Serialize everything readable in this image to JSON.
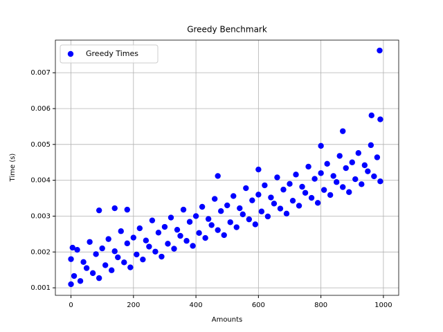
{
  "chart_data": {
    "type": "scatter",
    "title": "Greedy Benchmark",
    "x_label": "Amounts",
    "y_label": "Time (s)",
    "series": [
      {
        "name": "Greedy Times",
        "color": "#0000ff",
        "x": [
          0,
          10,
          20,
          30,
          40,
          50,
          60,
          70,
          80,
          90,
          100,
          110,
          120,
          130,
          140,
          150,
          160,
          170,
          180,
          190,
          200,
          210,
          220,
          230,
          240,
          250,
          260,
          270,
          280,
          290,
          300,
          310,
          320,
          330,
          340,
          350,
          360,
          370,
          380,
          390,
          400,
          410,
          420,
          430,
          440,
          450,
          460,
          470,
          480,
          490,
          500,
          510,
          520,
          530,
          540,
          550,
          560,
          570,
          580,
          590,
          600,
          610,
          620,
          630,
          640,
          650,
          660,
          670,
          680,
          690,
          700,
          710,
          720,
          730,
          740,
          750,
          760,
          770,
          780,
          790,
          800,
          810,
          820,
          830,
          840,
          850,
          860,
          870,
          880,
          890,
          900,
          910,
          920,
          930,
          940,
          950,
          960,
          970,
          980,
          990,
          988,
          962,
          870,
          990,
          800,
          470,
          140,
          90,
          0,
          5,
          600,
          180
        ],
        "values": [
          0.0018,
          0.00133,
          0.00206,
          0.00119,
          0.00172,
          0.00155,
          0.00228,
          0.00141,
          0.00194,
          0.00127,
          0.0021,
          0.00163,
          0.00236,
          0.00149,
          0.00202,
          0.00185,
          0.00258,
          0.00171,
          0.00224,
          0.00157,
          0.0024,
          0.00193,
          0.00266,
          0.00179,
          0.00232,
          0.00215,
          0.00288,
          0.00201,
          0.00254,
          0.00187,
          0.0027,
          0.00223,
          0.00296,
          0.00209,
          0.00262,
          0.00245,
          0.00318,
          0.00231,
          0.00284,
          0.00217,
          0.003,
          0.00253,
          0.00326,
          0.00239,
          0.00292,
          0.00275,
          0.00348,
          0.00261,
          0.00314,
          0.00247,
          0.0033,
          0.00283,
          0.00356,
          0.00269,
          0.00322,
          0.00305,
          0.00378,
          0.00291,
          0.00344,
          0.00277,
          0.0036,
          0.00313,
          0.00386,
          0.00299,
          0.00352,
          0.00335,
          0.00408,
          0.00321,
          0.00374,
          0.00307,
          0.0039,
          0.00343,
          0.00416,
          0.00329,
          0.00382,
          0.00365,
          0.00438,
          0.00351,
          0.00404,
          0.00337,
          0.0042,
          0.00373,
          0.00446,
          0.00359,
          0.00412,
          0.00395,
          0.00468,
          0.00381,
          0.00434,
          0.00367,
          0.0045,
          0.00403,
          0.00476,
          0.00389,
          0.00442,
          0.00425,
          0.00498,
          0.00411,
          0.00464,
          0.00397,
          0.00762,
          0.00581,
          0.00537,
          0.0057,
          0.00496,
          0.00412,
          0.00322,
          0.00316,
          0.0011,
          0.00212,
          0.0043,
          0.00318
        ]
      }
    ],
    "xlim": [
      -49.95,
      1048.95
    ],
    "xticks": [
      0,
      200,
      400,
      600,
      800,
      1000
    ],
    "ylim": [
      0.00079,
      0.00791
    ],
    "yticks": [
      0.001,
      0.002,
      0.003,
      0.004,
      0.005,
      0.006,
      0.007
    ],
    "grid": true,
    "legend": "upper left"
  }
}
